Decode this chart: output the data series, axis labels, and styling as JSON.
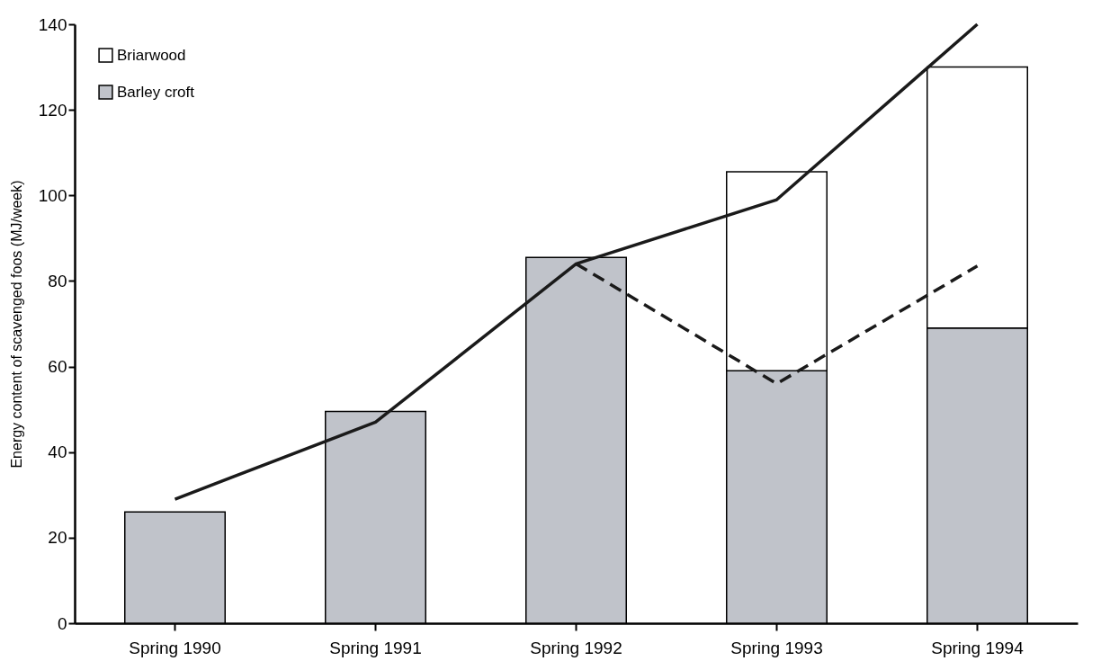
{
  "chart_data": {
    "type": "bar",
    "stacked": true,
    "ylabel": "Energy content of scavenged foos (MJ/week)",
    "categories": [
      "Spring 1990",
      "Spring 1991",
      "Spring 1992",
      "Spring 1993",
      "Spring 1994"
    ],
    "series": [
      {
        "name": "Barley croft",
        "color": "#c0c3ca",
        "values": [
          26,
          49.5,
          85.5,
          59,
          69
        ]
      },
      {
        "name": "Briarwood",
        "color": "#ffffff",
        "values": [
          null,
          null,
          null,
          46.5,
          61
        ]
      },
      {
        "type": "line",
        "color": "#1a1a1a",
        "line_style": "solid",
        "values": [
          29,
          47,
          84,
          99,
          140
        ]
      },
      {
        "type": "line",
        "color": "#1a1a1a",
        "line_style": "dashed",
        "values": [
          null,
          null,
          84,
          56,
          83.5
        ]
      }
    ],
    "ylim": [
      0,
      140
    ],
    "yticks": [
      0,
      20,
      40,
      60,
      80,
      100,
      120,
      140
    ],
    "grid": false,
    "legend": "top left",
    "marker": "none"
  }
}
